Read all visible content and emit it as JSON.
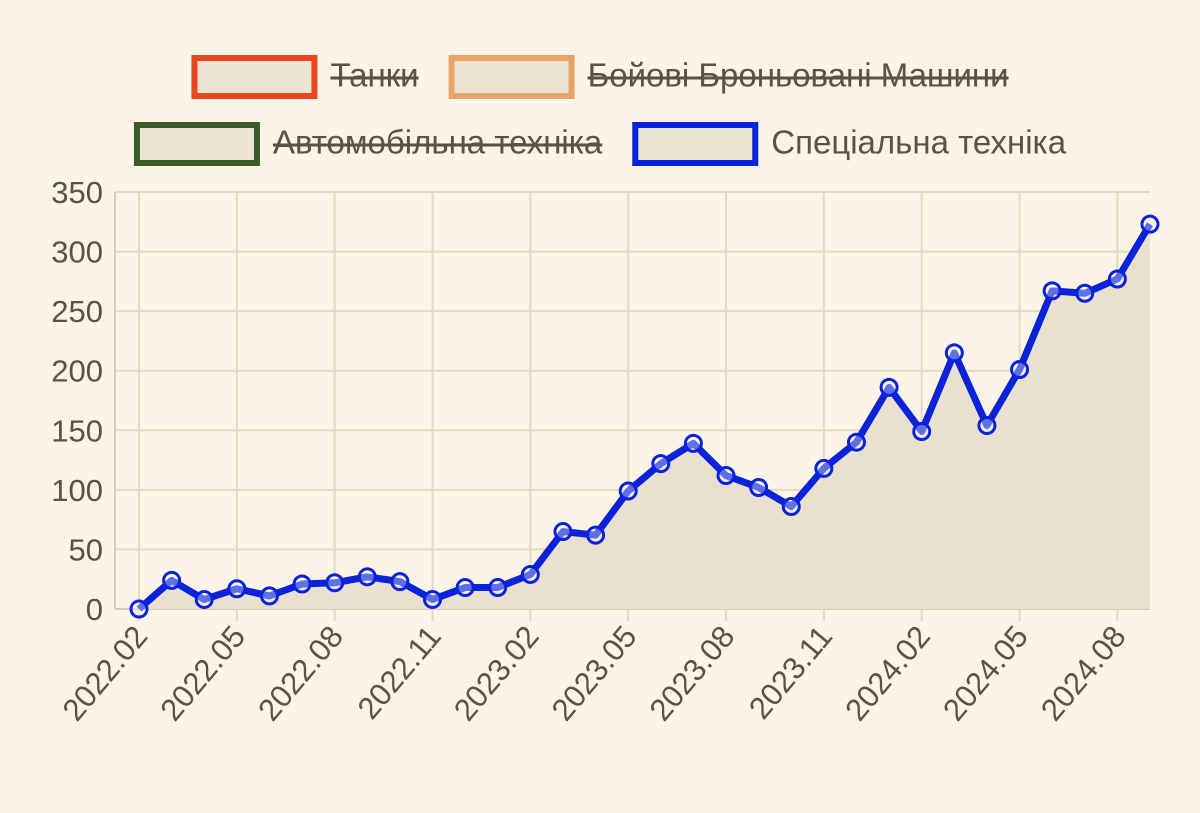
{
  "chart_data": {
    "type": "line",
    "categories": [
      "2022.02",
      null,
      null,
      "2022.05",
      null,
      null,
      "2022.08",
      null,
      null,
      "2022.11",
      null,
      null,
      "2023.02",
      null,
      null,
      "2023.05",
      null,
      null,
      "2023.08",
      null,
      null,
      "2023.11",
      null,
      null,
      "2024.02",
      null,
      null,
      "2024.05",
      null,
      null,
      "2024.08",
      null
    ],
    "series": [
      {
        "name": "Танки",
        "color": "#e8461e",
        "hidden": true
      },
      {
        "name": "Бойові Броньовані Машини",
        "color": "#e8a466",
        "hidden": true
      },
      {
        "name": "Автомобільна техніка",
        "color": "#3a5a2a",
        "hidden": true
      },
      {
        "name": "Спеціальна техніка",
        "color": "#0a22d8",
        "fill": "#e9e0d0",
        "values": [
          0,
          24,
          8,
          17,
          11,
          21,
          22,
          27,
          23,
          8,
          18,
          18,
          29,
          65,
          62,
          99,
          122,
          139,
          112,
          102,
          86,
          118,
          140,
          186,
          149,
          215,
          154,
          201,
          267,
          265,
          277,
          323
        ]
      }
    ],
    "ylim": [
      0,
      350
    ],
    "yticks": [
      0,
      50,
      100,
      150,
      200,
      250,
      300,
      350
    ],
    "grid": true
  }
}
